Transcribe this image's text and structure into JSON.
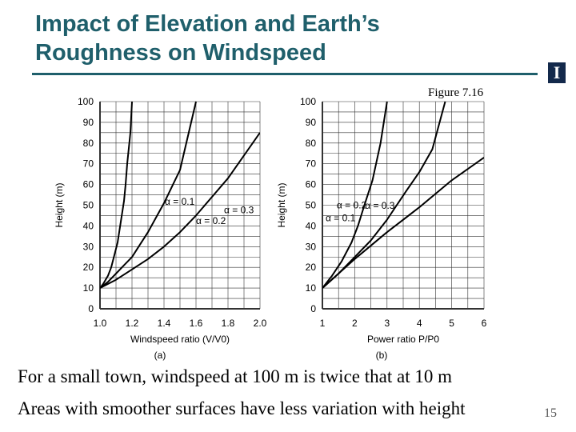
{
  "slide": {
    "title_line1": "Impact of Elevation and Earth’s",
    "title_line2": "Roughness on Windspeed",
    "logo_text": "I",
    "figure_caption": "Figure 7.16",
    "note1": "For a small town, windspeed at 100 m is twice that at 10 m",
    "note2": "Areas with smoother surfaces have less variation with height",
    "page_number": "15",
    "colors": {
      "title": "#1f5f6b",
      "logo": "#13294b",
      "grid": "#333333"
    }
  },
  "chart_data": [
    {
      "type": "line",
      "panel": "(a)",
      "xlabel": "Windspeed ratio (V/V0)",
      "ylabel": "Height (m)",
      "xlim": [
        1.0,
        2.0
      ],
      "ylim": [
        0,
        100
      ],
      "xticks": [
        "1.0",
        "1.2",
        "1.4",
        "1.6",
        "1.8",
        "2.0"
      ],
      "yticks": [
        "0",
        "10",
        "20",
        "30",
        "40",
        "50",
        "60",
        "70",
        "80",
        "90",
        "100"
      ],
      "series": [
        {
          "name": "α = 0.1",
          "x": [
            1.0,
            1.02,
            1.05,
            1.07,
            1.09,
            1.11,
            1.13,
            1.15,
            1.16,
            1.17,
            1.19,
            1.2
          ],
          "y": [
            10,
            12,
            16,
            20,
            26,
            32,
            42,
            52,
            60,
            70,
            85,
            100
          ]
        },
        {
          "name": "α = 0.2",
          "x": [
            1.0,
            1.05,
            1.1,
            1.15,
            1.2,
            1.25,
            1.3,
            1.35,
            1.4,
            1.45,
            1.5,
            1.6
          ],
          "y": [
            10,
            13,
            17,
            21,
            25,
            31,
            37,
            44,
            51,
            59,
            67,
            100
          ]
        },
        {
          "name": "α = 0.3",
          "x": [
            1.0,
            1.1,
            1.2,
            1.3,
            1.4,
            1.5,
            1.6,
            1.7,
            1.8,
            1.9,
            2.0
          ],
          "y": [
            10,
            14,
            19,
            24,
            30,
            37,
            45,
            54,
            63,
            74,
            85
          ]
        }
      ]
    },
    {
      "type": "line",
      "panel": "(b)",
      "xlabel": "Power ratio P/P0",
      "ylabel": "Height (m)",
      "xlim": [
        1,
        6
      ],
      "ylim": [
        0,
        100
      ],
      "xticks": [
        "1",
        "2",
        "3",
        "4",
        "5",
        "6"
      ],
      "yticks": [
        "0",
        "10",
        "20",
        "30",
        "40",
        "50",
        "60",
        "70",
        "80",
        "90",
        "100"
      ],
      "series": [
        {
          "name": "α = 0.1",
          "x": [
            1.0,
            1.3,
            1.6,
            1.9,
            2.1,
            2.3,
            2.55,
            2.8,
            3.0
          ],
          "y": [
            10,
            16,
            23,
            32,
            40,
            50,
            62,
            80,
            100
          ]
        },
        {
          "name": "α = 0.2",
          "x": [
            1.0,
            1.5,
            2.0,
            2.5,
            3.0,
            3.3,
            3.6,
            4.0,
            4.4,
            4.8
          ],
          "y": [
            10,
            17,
            25,
            33,
            43,
            50,
            57,
            66,
            77,
            100
          ]
        },
        {
          "name": "α = 0.3",
          "x": [
            1.0,
            2.0,
            3.0,
            4.0,
            5.0,
            6.0
          ],
          "y": [
            10,
            24,
            37,
            49,
            62,
            73
          ]
        }
      ]
    }
  ]
}
